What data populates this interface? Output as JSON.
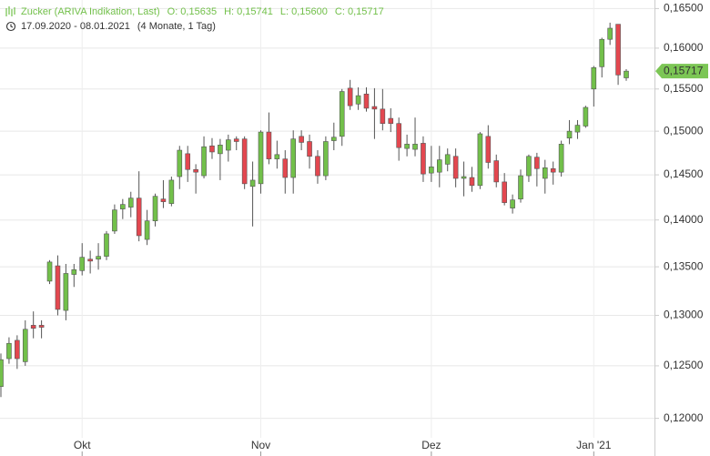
{
  "chart_data": {
    "type": "candlestick",
    "title": "Zucker (ARIVA Indikation, Last)",
    "stats": [
      "O: 0,15635",
      "H: 0,15741",
      "L: 0,15600",
      "C: 0,15717"
    ],
    "date_range": "17.09.2020 - 08.01.2021",
    "period": "(4 Monate, 1 Tag)",
    "categories": [
      null,
      null,
      null,
      null,
      null,
      null,
      null,
      null,
      null,
      null,
      "Okt",
      null,
      null,
      null,
      null,
      null,
      null,
      null,
      null,
      null,
      null,
      null,
      null,
      null,
      null,
      null,
      null,
      null,
      null,
      null,
      null,
      null,
      "Nov",
      null,
      null,
      null,
      null,
      null,
      null,
      null,
      null,
      null,
      null,
      null,
      null,
      null,
      null,
      null,
      null,
      null,
      null,
      null,
      null,
      "Dez",
      null,
      null,
      null,
      null,
      null,
      null,
      null,
      null,
      null,
      null,
      null,
      null,
      null,
      null,
      null,
      null,
      null,
      null,
      null,
      "Jan '21",
      null,
      null,
      null,
      null
    ],
    "open": [
      0.123,
      0.1257,
      0.1275,
      0.1254,
      0.129,
      0.129,
      0.1335,
      0.1351,
      0.1305,
      0.1342,
      0.1346,
      0.1358,
      0.1358,
      0.1361,
      0.1388,
      0.1412,
      0.1414,
      0.1424,
      0.1379,
      0.1399,
      0.1423,
      0.1418,
      0.1448,
      0.1474,
      0.1456,
      0.1449,
      0.1483,
      0.1474,
      0.1478,
      0.1491,
      0.1491,
      0.1437,
      0.144,
      0.1499,
      0.1468,
      0.1468,
      0.1447,
      0.1494,
      0.1488,
      0.1471,
      0.1449,
      0.1489,
      0.1494,
      0.1551,
      0.1532,
      0.1544,
      0.1529,
      0.1526,
      0.1515,
      0.1509,
      0.148,
      0.1479,
      0.1486,
      0.1452,
      0.1453,
      0.1462,
      0.1471,
      0.1446,
      0.1447,
      0.1438,
      0.1494,
      0.1466,
      0.1442,
      0.1413,
      0.1423,
      0.1449,
      0.147,
      0.1446,
      0.1457,
      0.1453,
      0.1492,
      0.1499,
      0.1506,
      0.155,
      0.1577,
      0.1611,
      0.163,
      0.15635
    ],
    "high": [
      0.1262,
      0.1278,
      0.128,
      0.1295,
      0.1304,
      0.1295,
      0.1357,
      0.1362,
      0.1353,
      0.1353,
      0.1375,
      0.1367,
      0.1375,
      0.1388,
      0.1417,
      0.1423,
      0.1431,
      0.1454,
      0.1411,
      0.1429,
      0.1444,
      0.1448,
      0.1483,
      0.1483,
      0.1462,
      0.1494,
      0.1492,
      0.1491,
      0.1496,
      0.1494,
      0.1494,
      0.1465,
      0.1501,
      0.1522,
      0.1489,
      0.1478,
      0.1501,
      0.1501,
      0.1496,
      0.1478,
      0.1494,
      0.151,
      0.155,
      0.1561,
      0.1552,
      0.1552,
      0.1551,
      0.155,
      0.1527,
      0.1516,
      0.1496,
      0.1516,
      0.1494,
      0.1483,
      0.1483,
      0.148,
      0.148,
      0.1465,
      0.1459,
      0.1499,
      0.1507,
      0.1473,
      0.1452,
      0.1428,
      0.1456,
      0.1473,
      0.1475,
      0.1467,
      0.1465,
      0.1489,
      0.1513,
      0.1513,
      0.153,
      0.1578,
      0.1613,
      0.1632,
      0.163,
      0.15741
    ],
    "low": [
      0.122,
      0.1252,
      0.1247,
      0.125,
      0.1277,
      0.1277,
      0.1332,
      0.13,
      0.1295,
      0.1329,
      0.1341,
      0.1343,
      0.1347,
      0.1357,
      0.1385,
      0.1401,
      0.1403,
      0.1377,
      0.1373,
      0.1393,
      0.1413,
      0.1415,
      0.1434,
      0.1442,
      0.1429,
      0.1446,
      0.1468,
      0.1444,
      0.1465,
      0.1478,
      0.1434,
      0.1393,
      0.1429,
      0.1462,
      0.1457,
      0.1429,
      0.1429,
      0.1478,
      0.1457,
      0.144,
      0.1444,
      0.1478,
      0.1483,
      0.1525,
      0.1525,
      0.1523,
      0.1491,
      0.1501,
      0.1499,
      0.1466,
      0.1471,
      0.1471,
      0.1442,
      0.1442,
      0.1436,
      0.1454,
      0.1436,
      0.1426,
      0.1431,
      0.1434,
      0.1457,
      0.1436,
      0.1416,
      0.1407,
      0.1419,
      0.1442,
      0.1437,
      0.1429,
      0.1439,
      0.1448,
      0.1485,
      0.1491,
      0.1504,
      0.1529,
      0.1564,
      0.1604,
      0.1555,
      0.156
    ],
    "close": [
      0.1256,
      0.1272,
      0.1257,
      0.1286,
      0.1287,
      0.1288,
      0.1355,
      0.1306,
      0.1343,
      0.1347,
      0.136,
      0.1356,
      0.1361,
      0.1385,
      0.1411,
      0.1417,
      0.1424,
      0.1383,
      0.1399,
      0.1426,
      0.142,
      0.1444,
      0.1478,
      0.1456,
      0.1453,
      0.1482,
      0.1476,
      0.1484,
      0.149,
      0.1488,
      0.144,
      0.1444,
      0.1499,
      0.1468,
      0.1473,
      0.1447,
      0.1491,
      0.1487,
      0.1471,
      0.1449,
      0.1488,
      0.1493,
      0.1547,
      0.153,
      0.1542,
      0.1527,
      0.1526,
      0.1509,
      0.1509,
      0.1481,
      0.1485,
      0.1485,
      0.1451,
      0.1459,
      0.1467,
      0.1473,
      0.1446,
      0.1448,
      0.1438,
      0.1497,
      0.1464,
      0.1442,
      0.1419,
      0.1422,
      0.1449,
      0.1471,
      0.1457,
      0.1458,
      0.1453,
      0.1485,
      0.15,
      0.1507,
      0.1528,
      0.1576,
      0.1611,
      0.1625,
      0.1567,
      0.15717
    ],
    "up_color": "#72c04a",
    "down_color": "#e3474f",
    "tag_color": "#7cc655",
    "last_price": {
      "value": 0.15717,
      "label": "0,15717"
    },
    "log": true,
    "grid": true,
    "ylim": [
      0.1182,
      0.1661
    ],
    "yticks": [
      {
        "value": 0.165,
        "label": "0,16500"
      },
      {
        "value": 0.16,
        "label": "0,16000"
      },
      {
        "value": 0.155,
        "label": "0,15500"
      },
      {
        "value": 0.15,
        "label": "0,15000"
      },
      {
        "value": 0.145,
        "label": "0,14500"
      },
      {
        "value": 0.14,
        "label": "0,14000"
      },
      {
        "value": 0.135,
        "label": "0,13500"
      },
      {
        "value": 0.13,
        "label": "0,13000"
      },
      {
        "value": 0.125,
        "label": "0,12500"
      },
      {
        "value": 0.12,
        "label": "0,12000"
      }
    ]
  }
}
